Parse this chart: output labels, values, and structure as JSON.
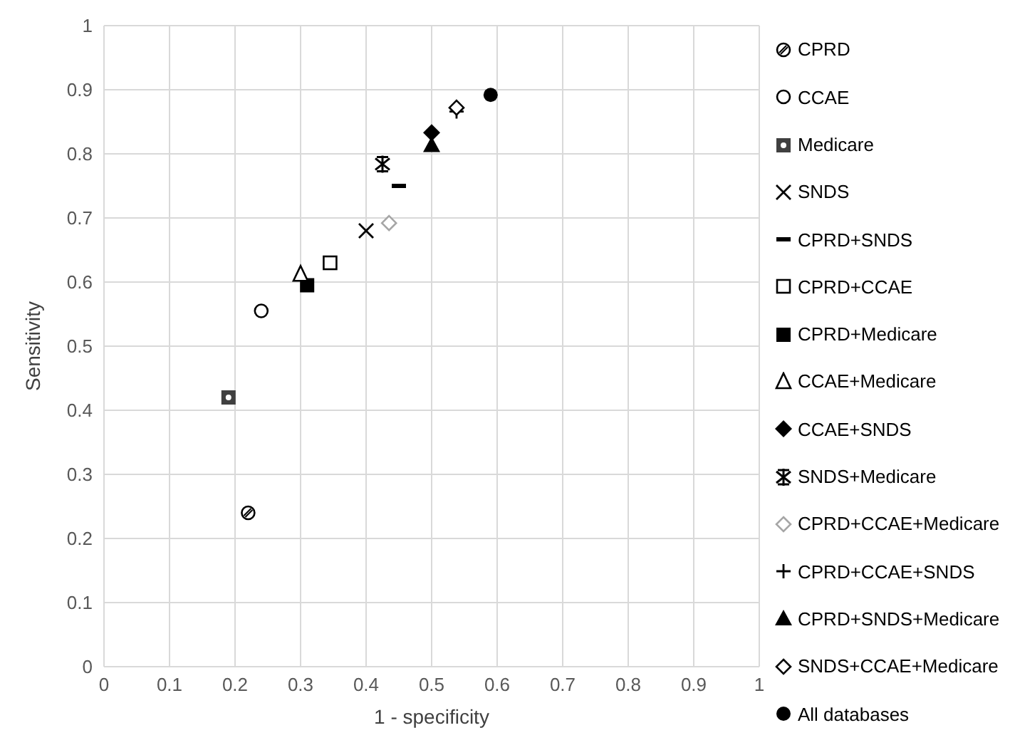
{
  "chart_data": {
    "type": "scatter",
    "xlabel": "1 - specificity",
    "ylabel": "Sensitivity",
    "xlim": [
      0,
      1
    ],
    "ylim": [
      0,
      1
    ],
    "xticks": [
      0,
      0.1,
      0.2,
      0.3,
      0.4,
      0.5,
      0.6,
      0.7,
      0.8,
      0.9,
      1
    ],
    "yticks": [
      0,
      0.1,
      0.2,
      0.3,
      0.4,
      0.5,
      0.6,
      0.7,
      0.8,
      0.9,
      1
    ],
    "grid": true,
    "legend": "right",
    "series": [
      {
        "name": "CPRD",
        "color": "#000000",
        "marker": "circle-hatched",
        "x": [
          0.22
        ],
        "values": [
          0.24
        ]
      },
      {
        "name": "CCAE",
        "color": "#000000",
        "marker": "circle-open",
        "x": [
          0.24
        ],
        "values": [
          0.555
        ]
      },
      {
        "name": "Medicare",
        "color": "#404040",
        "marker": "square-patterned",
        "x": [
          0.19
        ],
        "values": [
          0.42
        ]
      },
      {
        "name": "SNDS",
        "color": "#000000",
        "marker": "x",
        "x": [
          0.4
        ],
        "values": [
          0.68
        ]
      },
      {
        "name": "CPRD+SNDS",
        "color": "#000000",
        "marker": "square-dash",
        "x": [
          0.45
        ],
        "values": [
          0.75
        ]
      },
      {
        "name": "CPRD+CCAE",
        "color": "#000000",
        "marker": "square-open",
        "x": [
          0.345
        ],
        "values": [
          0.63
        ]
      },
      {
        "name": "CPRD+Medicare",
        "color": "#000000",
        "marker": "square",
        "x": [
          0.31
        ],
        "values": [
          0.595
        ]
      },
      {
        "name": "CCAE+Medicare",
        "color": "#000000",
        "marker": "triangle-open",
        "x": [
          0.3
        ],
        "values": [
          0.612
        ]
      },
      {
        "name": "CCAE+SNDS",
        "color": "#000000",
        "marker": "diamond",
        "x": [
          0.5
        ],
        "values": [
          0.833
        ]
      },
      {
        "name": "SNDS+Medicare",
        "color": "#000000",
        "marker": "cross-asterisk",
        "x": [
          0.425
        ],
        "values": [
          0.784
        ]
      },
      {
        "name": "CPRD+CCAE+Medicare",
        "color": "#a6a6a6",
        "marker": "diamond-open",
        "x": [
          0.435
        ],
        "values": [
          0.692
        ]
      },
      {
        "name": "CPRD+CCAE+SNDS",
        "color": "#000000",
        "marker": "cross",
        "x": [
          0.538
        ],
        "values": [
          0.866
        ]
      },
      {
        "name": "CPRD+SNDS+Medicare",
        "color": "#000000",
        "marker": "triangle",
        "x": [
          0.5
        ],
        "values": [
          0.814
        ]
      },
      {
        "name": "SNDS+CCAE+Medicare",
        "color": "#000000",
        "marker": "diamond-open",
        "x": [
          0.538
        ],
        "values": [
          0.872
        ]
      },
      {
        "name": "All databases",
        "color": "#000000",
        "marker": "circle",
        "x": [
          0.59
        ],
        "values": [
          0.892
        ]
      }
    ]
  }
}
